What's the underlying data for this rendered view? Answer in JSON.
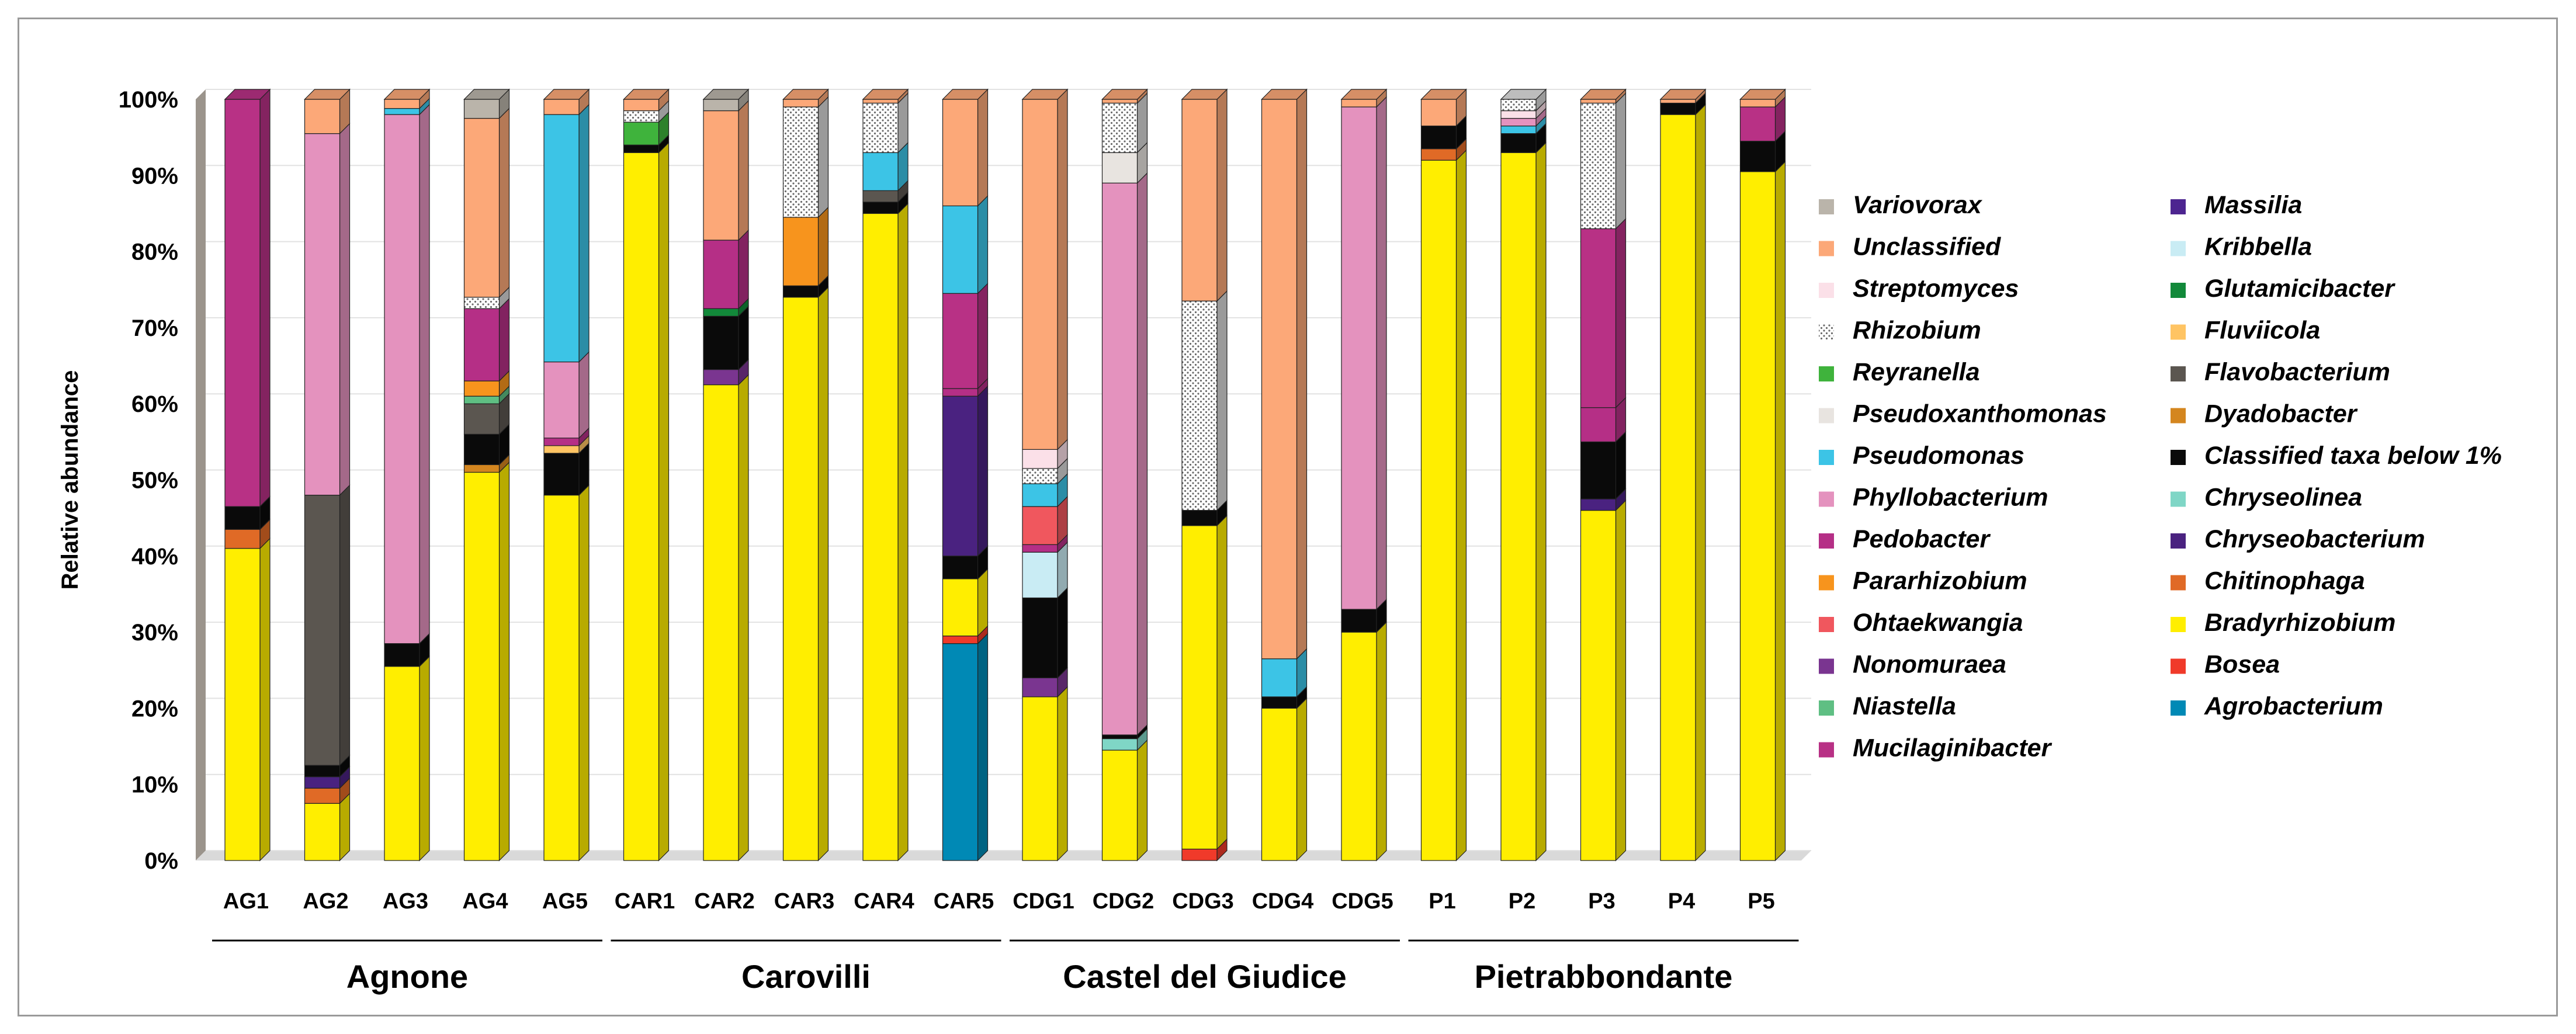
{
  "chart_data": {
    "type": "bar",
    "stacked": true,
    "three_d": true,
    "ylabel": "Relative abundance",
    "ylim": [
      0,
      100
    ],
    "y_ticks": [
      "0%",
      "10%",
      "20%",
      "30%",
      "40%",
      "50%",
      "60%",
      "70%",
      "80%",
      "90%",
      "100%"
    ],
    "categories": [
      "AG1",
      "AG2",
      "AG3",
      "AG4",
      "AG5",
      "CAR1",
      "CAR2",
      "CAR3",
      "CAR4",
      "CAR5",
      "CDG1",
      "CDG2",
      "CDG3",
      "CDG4",
      "CDG5",
      "P1",
      "P2",
      "P3",
      "P4",
      "P5"
    ],
    "groups": [
      {
        "name": "Agnone",
        "start": 0,
        "end": 4
      },
      {
        "name": "Carovilli",
        "start": 5,
        "end": 9
      },
      {
        "name": "Castel del Giudice",
        "start": 10,
        "end": 14
      },
      {
        "name": "Pietrabbondante",
        "start": 15,
        "end": 19
      }
    ],
    "legend": {
      "left": [
        "Variovorax",
        "Unclassified",
        "Streptomyces",
        "Rhizobium",
        "Reyranella",
        "Pseudoxanthomonas",
        "Pseudomonas",
        "Phyllobacterium",
        "Pedobacter",
        "Pararhizobium",
        "Ohtaekwangia",
        "Nonomuraea",
        "Niastella",
        "Mucilaginibacter"
      ],
      "right": [
        "Massilia",
        "Kribbella",
        "Glutamicibacter",
        "Fluviicola",
        "Flavobacterium",
        "Dyadobacter",
        "Classified taxa below 1%",
        "Chryseolinea",
        "Chryseobacterium",
        "Chitinophaga",
        "Bradyrhizobium",
        "Bosea",
        "Agrobacterium"
      ]
    },
    "colors": {
      "Agrobacterium": "#0089b5",
      "Bosea": "#f03a2a",
      "Bradyrhizobium": "#ffee00",
      "Chitinophaga": "#e06a26",
      "Chryseobacterium": "#4a2280",
      "Chryseolinea": "#7fd6c6",
      "Classified taxa below 1%": "#0a0a0a",
      "Dyadobacter": "#d4861f",
      "Flavobacterium": "#5b5650",
      "Fluviicola": "#ffc463",
      "Glutamicibacter": "#12893a",
      "Kribbella": "#c9ecf4",
      "Massilia": "#4d2590",
      "Mucilaginibacter": "#b83185",
      "Niastella": "#5fbf83",
      "Nonomuraea": "#7a3590",
      "Ohtaekwangia": "#f0575e",
      "Pararhizobium": "#f7941d",
      "Pedobacter": "#b52f86",
      "Phyllobacterium": "#e492be",
      "Pseudomonas": "#3cc4e6",
      "Pseudoxanthomonas": "#e8e4e0",
      "Reyranella": "#3fb33c",
      "Rhizobium": "#dcdcdc",
      "Streptomyces": "#fbe0e8",
      "Unclassified": "#fca878",
      "Variovorax": "#bab4aa"
    },
    "stacks": [
      [
        [
          "Bradyrhizobium",
          41
        ],
        [
          "Chitinophaga",
          2.5
        ],
        [
          "Classified taxa below 1%",
          3
        ],
        [
          "Mucilaginibacter",
          53.5
        ]
      ],
      [
        [
          "Bradyrhizobium",
          7.5
        ],
        [
          "Chitinophaga",
          2
        ],
        [
          "Chryseobacterium",
          1.5
        ],
        [
          "Classified taxa below 1%",
          1.5
        ],
        [
          "Flavobacterium",
          35.5
        ],
        [
          "Phyllobacterium",
          47.5
        ],
        [
          "Unclassified",
          4.5
        ]
      ],
      [
        [
          "Bradyrhizobium",
          25.5
        ],
        [
          "Classified taxa below 1%",
          3
        ],
        [
          "Phyllobacterium",
          69.5
        ],
        [
          "Pseudomonas",
          0.8
        ],
        [
          "Unclassified",
          1.2
        ]
      ],
      [
        [
          "Bradyrhizobium",
          51
        ],
        [
          "Dyadobacter",
          1
        ],
        [
          "Classified taxa below 1%",
          4
        ],
        [
          "Flavobacterium",
          4
        ],
        [
          "Niastella",
          1
        ],
        [
          "Pararhizobium",
          2
        ],
        [
          "Pedobacter",
          9.5
        ],
        [
          "Rhizobium",
          1.5
        ],
        [
          "Unclassified",
          23.5
        ],
        [
          "Variovorax",
          2.5
        ]
      ],
      [
        [
          "Bradyrhizobium",
          48
        ],
        [
          "Classified taxa below 1%",
          5.5
        ],
        [
          "Fluviicola",
          1
        ],
        [
          "Pedobacter",
          1
        ],
        [
          "Phyllobacterium",
          10
        ],
        [
          "Pseudomonas",
          32.5
        ],
        [
          "Unclassified",
          2
        ]
      ],
      [
        [
          "Bradyrhizobium",
          93
        ],
        [
          "Classified taxa below 1%",
          1
        ],
        [
          "Reyranella",
          3
        ],
        [
          "Rhizobium",
          1.5
        ],
        [
          "Unclassified",
          1.5
        ]
      ],
      [
        [
          "Bradyrhizobium",
          62.5
        ],
        [
          "Nonomuraea",
          2
        ],
        [
          "Classified taxa below 1%",
          7
        ],
        [
          "Glutamicibacter",
          1
        ],
        [
          "Pedobacter",
          9
        ],
        [
          "Unclassified",
          17
        ],
        [
          "Variovorax",
          1.5
        ]
      ],
      [
        [
          "Bradyrhizobium",
          74
        ],
        [
          "Classified taxa below 1%",
          1.5
        ],
        [
          "Pararhizobium",
          9
        ],
        [
          "Rhizobium",
          14.5
        ],
        [
          "Unclassified",
          1
        ]
      ],
      [
        [
          "Bradyrhizobium",
          85
        ],
        [
          "Classified taxa below 1%",
          1.5
        ],
        [
          "Flavobacterium",
          1.5
        ],
        [
          "Pseudomonas",
          5
        ],
        [
          "Rhizobium",
          6.5
        ],
        [
          "Unclassified",
          0.5
        ]
      ],
      [
        [
          "Agrobacterium",
          28.5
        ],
        [
          "Bosea",
          1
        ],
        [
          "Bradyrhizobium",
          7.5
        ],
        [
          "Classified taxa below 1%",
          3
        ],
        [
          "Chryseobacterium",
          21
        ],
        [
          "Pedobacter",
          1
        ],
        [
          "Mucilaginibacter",
          12.5
        ],
        [
          "Pseudomonas",
          11.5
        ],
        [
          "Unclassified",
          14
        ]
      ],
      [
        [
          "Bradyrhizobium",
          21.5
        ],
        [
          "Nonomuraea",
          2.5
        ],
        [
          "Classified taxa below 1%",
          10.5
        ],
        [
          "Kribbella",
          6
        ],
        [
          "Pedobacter",
          1
        ],
        [
          "Ohtaekwangia",
          5
        ],
        [
          "Pseudomonas",
          3
        ],
        [
          "Rhizobium",
          2
        ],
        [
          "Streptomyces",
          2.5
        ],
        [
          "Unclassified",
          46
        ]
      ],
      [
        [
          "Bradyrhizobium",
          14.5
        ],
        [
          "Chryseolinea",
          1.5
        ],
        [
          "Classified taxa below 1%",
          0.5
        ],
        [
          "Phyllobacterium",
          72.5
        ],
        [
          "Pseudoxanthomonas",
          4
        ],
        [
          "Rhizobium",
          6.5
        ],
        [
          "Unclassified",
          0.5
        ]
      ],
      [
        [
          "Bosea",
          1.5
        ],
        [
          "Bradyrhizobium",
          42.5
        ],
        [
          "Classified taxa below 1%",
          2
        ],
        [
          "Rhizobium",
          27.5
        ],
        [
          "Unclassified",
          26.5
        ]
      ],
      [
        [
          "Bradyrhizobium",
          20
        ],
        [
          "Classified taxa below 1%",
          1.5
        ],
        [
          "Pseudomonas",
          5
        ],
        [
          "Unclassified",
          73.5
        ]
      ],
      [
        [
          "Bradyrhizobium",
          30
        ],
        [
          "Classified taxa below 1%",
          3
        ],
        [
          "Phyllobacterium",
          66
        ],
        [
          "Unclassified",
          1
        ]
      ],
      [
        [
          "Bradyrhizobium",
          92
        ],
        [
          "Chitinophaga",
          1.5
        ],
        [
          "Classified taxa below 1%",
          3
        ],
        [
          "Unclassified",
          3.5
        ]
      ],
      [
        [
          "Bradyrhizobium",
          93
        ],
        [
          "Classified taxa below 1%",
          2.5
        ],
        [
          "Pseudomonas",
          1
        ],
        [
          "Phyllobacterium",
          1
        ],
        [
          "Streptomyces",
          1
        ],
        [
          "Rhizobium",
          1.5
        ]
      ],
      [
        [
          "Bradyrhizobium",
          46
        ],
        [
          "Chryseobacterium",
          1.5
        ],
        [
          "Classified taxa below 1%",
          7.5
        ],
        [
          "Pedobacter",
          4.5
        ],
        [
          "Mucilaginibacter",
          23.5
        ],
        [
          "Rhizobium",
          16.5
        ],
        [
          "Unclassified",
          0.5
        ]
      ],
      [
        [
          "Bradyrhizobium",
          98
        ],
        [
          "Classified taxa below 1%",
          1.5
        ],
        [
          "Unclassified",
          0.5
        ]
      ],
      [
        [
          "Bradyrhizobium",
          90.5
        ],
        [
          "Classified taxa below 1%",
          4
        ],
        [
          "Mucilaginibacter",
          4.5
        ],
        [
          "Unclassified",
          1
        ]
      ]
    ]
  }
}
